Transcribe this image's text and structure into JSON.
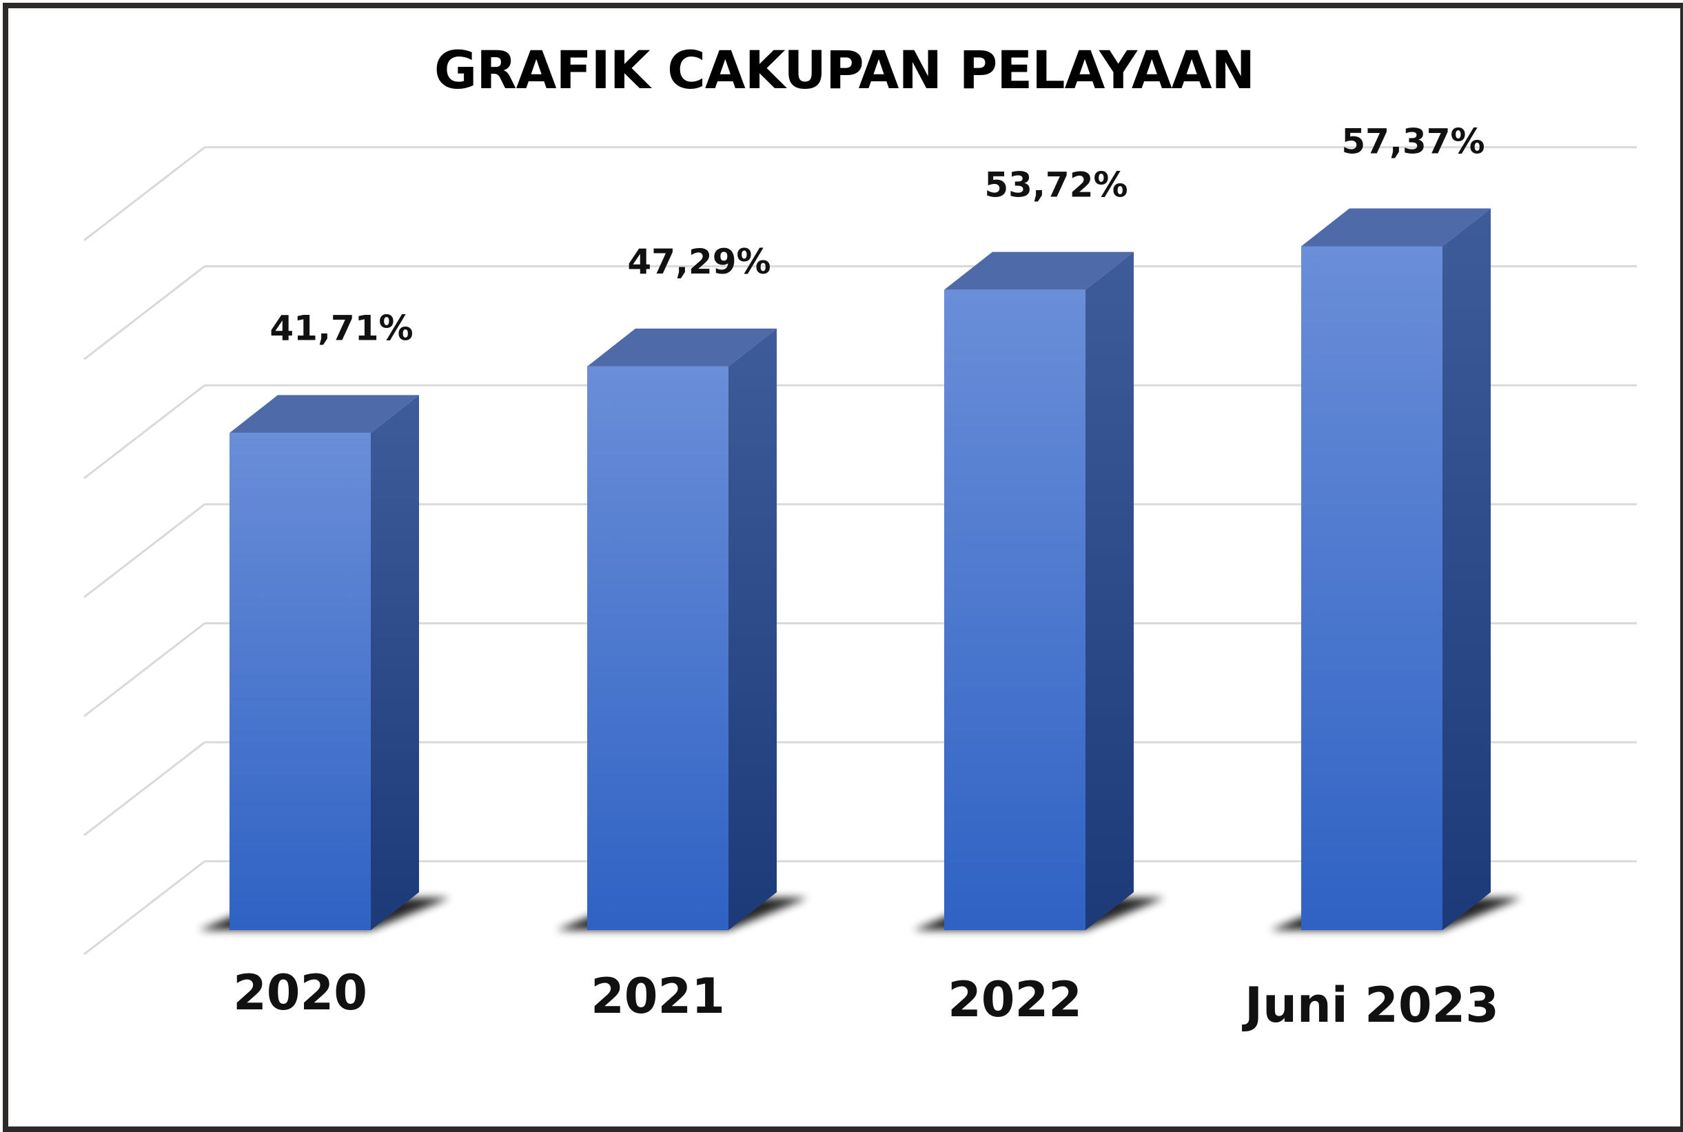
{
  "chart_data": {
    "type": "bar",
    "title": "GRAFIK CAKUPAN PELAYAAN",
    "categories": [
      "2020",
      "2021",
      "2022",
      "Juni 2023"
    ],
    "values": [
      41.71,
      47.29,
      53.72,
      57.37
    ],
    "value_labels": [
      "41,71%",
      "47,29%",
      "53,72%",
      "57,37%"
    ],
    "xlabel": "",
    "ylabel": "",
    "ylim": [
      0,
      70
    ],
    "grid": true,
    "style": "3d-column",
    "colors": {
      "bar_front_top": "#6a8ed8",
      "bar_front_bottom": "#2f62c4",
      "bar_side_top": "#3e5c9a",
      "bar_side_bottom": "#1d3a78",
      "bar_top": "#4f6aa8",
      "gridline": "#d9d9d9",
      "frame": "#2f2a2a"
    }
  }
}
